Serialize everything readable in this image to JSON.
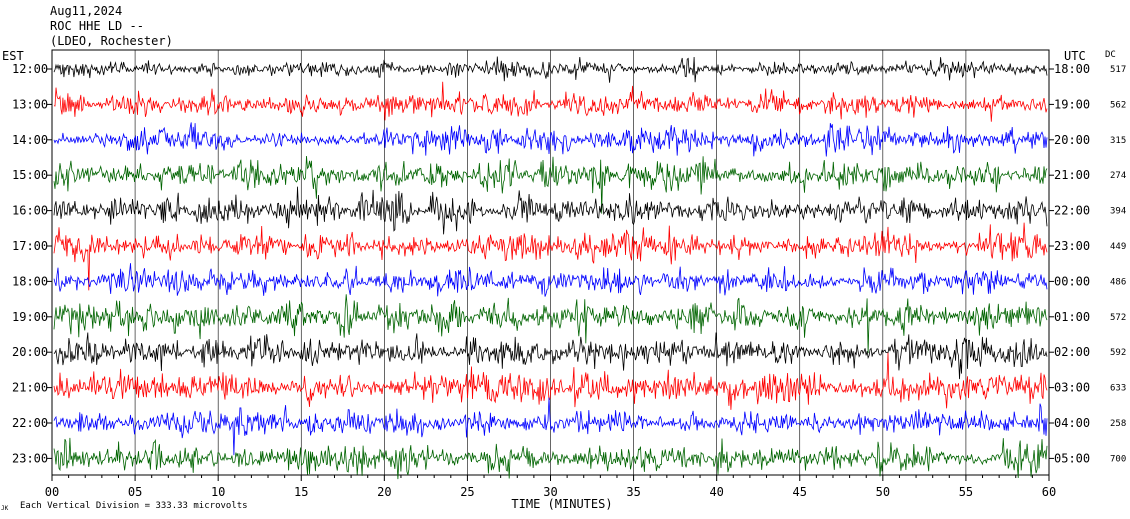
{
  "header": {
    "date": "Aug11,2024",
    "station": "ROC HHE LD --",
    "network": "(LDEO, Rochester)"
  },
  "left_axis_label": "EST",
  "right_axis_label": "UTC",
  "dc_label": "DC",
  "footer": {
    "scale_note": "Each Vertical Division =  333.33 microvolts",
    "corner_mark": "JK"
  },
  "chart_data": {
    "type": "line",
    "title": "",
    "xlabel": "TIME (MINUTES)",
    "ylabel": "",
    "xlim": [
      0,
      60
    ],
    "x_ticks": [
      0,
      5,
      10,
      15,
      20,
      25,
      30,
      35,
      40,
      45,
      50,
      55,
      60
    ],
    "x_tick_labels": [
      "00",
      "05",
      "10",
      "15",
      "20",
      "25",
      "30",
      "35",
      "40",
      "45",
      "50",
      "55",
      "60"
    ],
    "grid": true,
    "rows": [
      {
        "est": "12:00",
        "utc": "18:00",
        "dc": "517",
        "color": "#000000",
        "amplitude": 0.3
      },
      {
        "est": "13:00",
        "utc": "19:00",
        "dc": "562",
        "color": "#ff0000",
        "amplitude": 0.45
      },
      {
        "est": "14:00",
        "utc": "20:00",
        "dc": "315",
        "color": "#0000ff",
        "amplitude": 0.45
      },
      {
        "est": "15:00",
        "utc": "21:00",
        "dc": "274",
        "color": "#006400",
        "amplitude": 0.5
      },
      {
        "est": "16:00",
        "utc": "22:00",
        "dc": "394",
        "color": "#000000",
        "amplitude": 0.5
      },
      {
        "est": "17:00",
        "utc": "23:00",
        "dc": "449",
        "color": "#ff0000",
        "amplitude": 0.5
      },
      {
        "est": "18:00",
        "utc": "00:00",
        "dc": "486",
        "color": "#0000ff",
        "amplitude": 0.45
      },
      {
        "est": "19:00",
        "utc": "01:00",
        "dc": "572",
        "color": "#006400",
        "amplitude": 0.55
      },
      {
        "est": "20:00",
        "utc": "02:00",
        "dc": "592",
        "color": "#000000",
        "amplitude": 0.5
      },
      {
        "est": "21:00",
        "utc": "03:00",
        "dc": "633",
        "color": "#ff0000",
        "amplitude": 0.5
      },
      {
        "est": "22:00",
        "utc": "04:00",
        "dc": "258",
        "color": "#0000ff",
        "amplitude": 0.45
      },
      {
        "est": "23:00",
        "utc": "05:00",
        "dc": "700",
        "color": "#006400",
        "amplitude": 0.55
      }
    ]
  }
}
